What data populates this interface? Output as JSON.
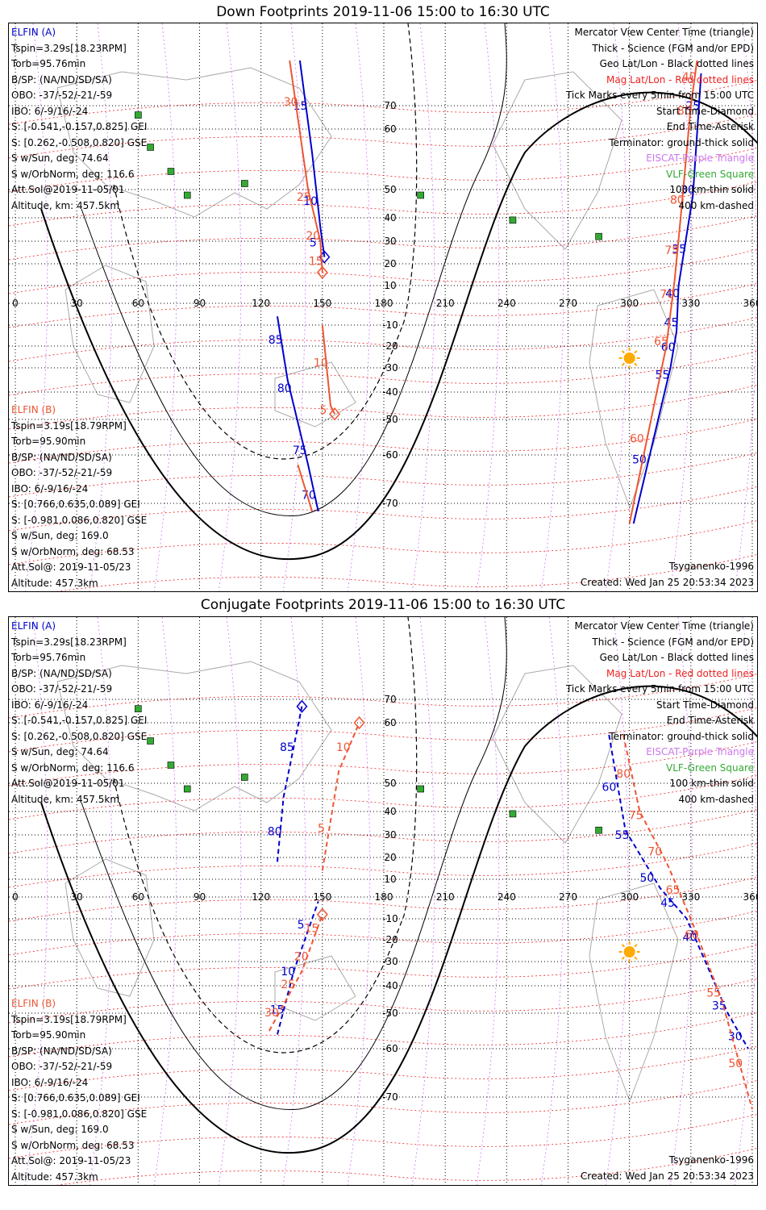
{
  "panels": [
    {
      "id": "down",
      "title": "Down Footprints 2019-11-06 15:00 to 16:30 UTC",
      "elfin_a": {
        "name": "ELFIN (A)",
        "lines": [
          "Tspin=3.29s[18.23RPM]",
          "Torb=95.76min",
          "B/SP: (NA/ND/SD/SA)",
          "OBO: -37/-52/-21/-59",
          "IBO: 6/-9/16/-24",
          "S: [-0.541,-0.157,0.825] GEI",
          "S: [0.262,-0.508,0.820] GSE",
          "S w/Sun, deg: 74.64",
          "S w/OrbNorm, deg: 116.6",
          "Att.Sol@2019-11-05/01",
          "Altitude, km: 457.5km"
        ]
      },
      "elfin_b": {
        "name": "ELFIN (B)",
        "lines": [
          "Tspin=3.19s[18.79RPM]",
          "Torb=95.90min",
          "B/SP: (NA/ND/SD/SA)",
          "OBO: -37/-52/-21/-59",
          "IBO: 6/-9/16/-24",
          "S: [0.766,0.635,0.089] GEI",
          "S: [-0.981,0.086,0.820] GSE",
          "S w/Sun, deg: 169.0",
          "S w/OrbNorm, deg: 68.53",
          "Att.Sol@: 2019-11-05/23",
          "Altitude: 457.3km"
        ]
      },
      "model": "Tsyganenko-1996",
      "created": "Created: Wed Jan 25 20:53:34 2023"
    },
    {
      "id": "conj",
      "title": "Conjugate Footprints 2019-11-06 15:00 to 16:30 UTC",
      "elfin_a": {
        "name": "ELFIN (A)",
        "lines": [
          "Tspin=3.29s[18.23RPM]",
          "Torb=95.76min",
          "B/SP: (NA/ND/SD/SA)",
          "OBO: -37/-52/-21/-59",
          "IBO: 6/-9/16/-24",
          "S: [-0.541,-0.157,0.825] GEI",
          "S: [0.262,-0.508,0.820] GSE",
          "S w/Sun, deg: 74.64",
          "S w/OrbNorm, deg: 116.6",
          "Att.Sol@2019-11-05/01",
          "Altitude, km: 457.5km"
        ]
      },
      "elfin_b": {
        "name": "ELFIN (B)",
        "lines": [
          "Tspin=3.19s[18.79RPM]",
          "Torb=95.90min",
          "B/SP: (NA/ND/SD/SA)",
          "OBO: -37/-52/-21/-59",
          "IBO: 6/-9/16/-24",
          "S: [0.766,0.635,0.089] GEI",
          "S: [-0.981,0.086,0.820] GSE",
          "S w/Sun, deg: 169.0",
          "S w/OrbNorm, deg: 68.53",
          "Att.Sol@: 2019-11-05/23",
          "Altitude: 457.3km"
        ]
      },
      "model": "Tsyganenko-1996",
      "created": "Created: Wed Jan 25 20:53:34 2023"
    }
  ],
  "legend": {
    "center_time": "Mercator View Center Time (triangle)",
    "science": "Thick - Science (FGM and/or EPD)",
    "geo_grid": "Geo Lat/Lon - Black dotted lines",
    "mag_grid": "Mag Lat/Lon - Red dotted lines",
    "ticks": "Tick Marks every 5min from 15:00 UTC",
    "start": "Start Time-Diamond",
    "end": "End Time-Asterisk",
    "terminator": "Terminator: ground-thick solid",
    "eiscat": "EISCAT-Purple Triangle",
    "vlf": "VLF-Green Square",
    "km100": "100 km-thin solid",
    "km400": "400 km-dashed"
  },
  "axes": {
    "lon_ticks": [
      0,
      30,
      60,
      90,
      120,
      150,
      180,
      210,
      240,
      270,
      300,
      330,
      360
    ],
    "lat_ticks": [
      70,
      60,
      50,
      40,
      30,
      20,
      10,
      -10,
      -20,
      -30,
      -40,
      -50,
      -60,
      -70
    ]
  },
  "colors": {
    "elfin_a": "#0000cc",
    "elfin_b": "#ee5533",
    "geo_grid": "#000000",
    "mag_grid": "#ee2222",
    "eiscat": "#cc77ee",
    "vlf": "#33aa33",
    "sun": "#ffaa00",
    "coast": "#aaaaaa"
  },
  "tracks": {
    "down": {
      "a_north": {
        "minutes": [
          15,
          10,
          5
        ],
        "lon_lat": [
          [
            139,
            84
          ],
          [
            145,
            56
          ],
          [
            149,
            36
          ],
          [
            151,
            23
          ]
        ]
      },
      "b_north": {
        "minutes": [
          30,
          25,
          20,
          15
        ],
        "lon_lat": [
          [
            134,
            84
          ],
          [
            143,
            50
          ],
          [
            149,
            30
          ],
          [
            150,
            16
          ]
        ]
      },
      "a_south": {
        "minutes": [
          85,
          80,
          75,
          70
        ],
        "lon_lat": [
          [
            128,
            -6
          ],
          [
            133,
            -35
          ],
          [
            143,
            -62
          ],
          [
            148,
            -72
          ]
        ]
      },
      "b_south": {
        "minutes": [
          10,
          5
        ],
        "lon_lat": [
          [
            150,
            -10
          ],
          [
            154,
            -45
          ],
          [
            156,
            -48
          ]
        ]
      },
      "b_south2": {
        "minutes": [],
        "lon_lat": [
          [
            138,
            -62
          ],
          [
            145,
            -72
          ]
        ]
      },
      "a_east": {
        "minutes": [
          50,
          55,
          60,
          45,
          40,
          35,
          30,
          25
        ],
        "lon_lat": [
          [
            302,
            -75
          ],
          [
            320,
            -30
          ],
          [
            323,
            -13
          ],
          [
            324,
            10
          ],
          [
            331,
            48
          ],
          [
            335,
            80
          ]
        ]
      },
      "b_east": {
        "minutes": [
          60,
          65,
          70,
          75,
          80,
          85,
          40
        ],
        "lon_lat": [
          [
            300,
            -75
          ],
          [
            318,
            -20
          ],
          [
            322,
            12
          ],
          [
            325,
            40
          ],
          [
            330,
            70
          ],
          [
            333,
            84
          ]
        ]
      }
    },
    "conj": {
      "a_north": {
        "minutes": [
          80,
          85
        ],
        "lon_lat": [
          [
            128,
            18
          ],
          [
            131,
            45
          ],
          [
            140,
            67
          ]
        ]
      },
      "b_north": {
        "minutes": [
          5,
          10
        ],
        "lon_lat": [
          [
            150,
            14
          ],
          [
            158,
            52
          ],
          [
            168,
            60
          ]
        ]
      },
      "a_south": {
        "minutes": [
          15,
          10,
          5
        ],
        "lon_lat": [
          [
            128,
            -56
          ],
          [
            136,
            -34
          ],
          [
            148,
            -2
          ]
        ]
      },
      "b_south": {
        "minutes": [
          30,
          25,
          20,
          15
        ],
        "lon_lat": [
          [
            124,
            -55
          ],
          [
            140,
            -34
          ],
          [
            150,
            -8
          ]
        ]
      },
      "a_east": {
        "minutes": [
          60,
          55,
          50,
          45,
          40,
          35,
          30
        ],
        "lon_lat": [
          [
            290,
            58
          ],
          [
            298,
            32
          ],
          [
            315,
            5
          ],
          [
            328,
            -10
          ],
          [
            348,
            -50
          ],
          [
            358,
            -60
          ]
        ]
      },
      "b_east": {
        "minutes": [
          80,
          75,
          70,
          65,
          60,
          55,
          50
        ],
        "lon_lat": [
          [
            297,
            58
          ],
          [
            305,
            40
          ],
          [
            318,
            18
          ],
          [
            330,
            -10
          ],
          [
            345,
            -45
          ],
          [
            360,
            -73
          ]
        ]
      }
    }
  }
}
